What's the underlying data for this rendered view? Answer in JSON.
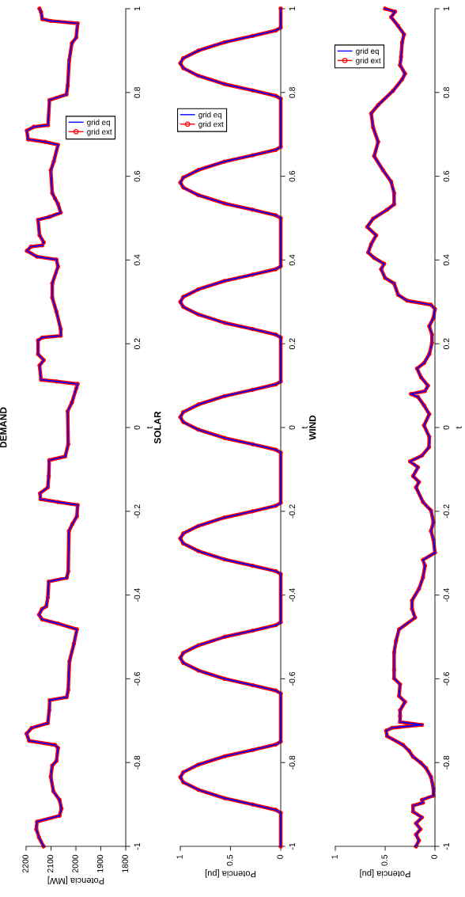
{
  "chart_data": [
    {
      "type": "line",
      "title": "DEMAND",
      "xlabel": "Potencia [MW]",
      "ylabel": "t",
      "xlim": [
        2200,
        1800
      ],
      "xticks": [
        2200,
        2100,
        2000,
        1900,
        1800
      ],
      "ylim": [
        -1,
        1
      ],
      "yticks": [
        -1,
        -0.8,
        -0.6,
        -0.4,
        -0.2,
        0,
        0.2,
        0.4,
        0.6,
        0.8,
        1
      ],
      "legend": "top",
      "series": [
        {
          "name": "grid ext",
          "color": "#ff0000",
          "marker": "circle",
          "x": [
            2130,
            2148,
            2159,
            2156,
            2066,
            2058,
            2066,
            2090,
            2101,
            2095,
            2078,
            2072,
            2084,
            2188,
            2198,
            2177,
            2113,
            2107,
            2105,
            2037,
            2031,
            2026,
            2008,
            1996,
            2072,
            2136,
            2148,
            2136,
            2119,
            2113,
            2109,
            2037,
            2031,
            2028,
            2014,
            1996,
            1993,
            2072,
            2142,
            2144,
            2113,
            2109,
            2107,
            2043,
            2031,
            2033,
            2016,
            1999,
            1993,
            2078,
            2140,
            2146,
            2129,
            2152,
            2152,
            2135,
            2061,
            2061,
            2078,
            2095,
            2095,
            2072,
            2078,
            2157,
            2197,
            2180,
            2135,
            2129,
            2146,
            2152,
            2106,
            2061,
            2072,
            2084,
            2095,
            2101,
            2089,
            2072,
            2123,
            2192,
            2197,
            2169,
            2112,
            2106,
            2038,
            2033,
            2027,
            2016,
            1999,
            1993,
            2101,
            2135,
            2140,
            2146
          ],
          "values": [
            -1,
            -0.979,
            -0.959,
            -0.941,
            -0.927,
            -0.91,
            -0.889,
            -0.869,
            -0.834,
            -0.807,
            -0.796,
            -0.765,
            -0.758,
            -0.748,
            -0.731,
            -0.717,
            -0.706,
            -0.675,
            -0.651,
            -0.644,
            -0.627,
            -0.558,
            -0.516,
            -0.482,
            -0.468,
            -0.458,
            -0.447,
            -0.433,
            -0.427,
            -0.406,
            -0.368,
            -0.359,
            -0.344,
            -0.247,
            -0.23,
            -0.212,
            -0.185,
            -0.178,
            -0.171,
            -0.157,
            -0.143,
            -0.116,
            -0.078,
            -0.069,
            -0.04,
            0.039,
            0.06,
            0.093,
            0.104,
            0.11,
            0.114,
            0.148,
            0.161,
            0.175,
            0.208,
            0.215,
            0.219,
            0.235,
            0.276,
            0.31,
            0.344,
            0.384,
            0.401,
            0.408,
            0.422,
            0.432,
            0.435,
            0.442,
            0.459,
            0.496,
            0.503,
            0.513,
            0.534,
            0.547,
            0.56,
            0.614,
            0.635,
            0.675,
            0.682,
            0.688,
            0.709,
            0.718,
            0.722,
            0.782,
            0.795,
            0.816,
            0.877,
            0.918,
            0.931,
            0.965,
            0.971,
            0.975,
            0.992,
            1
          ]
        },
        {
          "name": "grid eq",
          "color": "#0000ff",
          "marker": "none",
          "x": [
            2130,
            2148,
            2159,
            2156,
            2066,
            2058,
            2066,
            2090,
            2101,
            2095,
            2078,
            2072,
            2084,
            2188,
            2198,
            2177,
            2113,
            2107,
            2105,
            2037,
            2031,
            2026,
            2008,
            1996,
            2072,
            2136,
            2148,
            2136,
            2119,
            2113,
            2109,
            2037,
            2031,
            2028,
            2014,
            1996,
            1993,
            2072,
            2142,
            2144,
            2113,
            2109,
            2107,
            2043,
            2031,
            2033,
            2016,
            1999,
            1993,
            2078,
            2140,
            2146,
            2129,
            2152,
            2152,
            2135,
            2061,
            2061,
            2078,
            2095,
            2095,
            2072,
            2078,
            2157,
            2197,
            2180,
            2135,
            2129,
            2146,
            2152,
            2106,
            2061,
            2072,
            2084,
            2095,
            2101,
            2089,
            2072,
            2123,
            2192,
            2197,
            2169,
            2112,
            2106,
            2038,
            2033,
            2027,
            2016,
            1999,
            1993,
            2101,
            2135,
            2140,
            2146
          ],
          "values": [
            -1,
            -0.979,
            -0.959,
            -0.941,
            -0.927,
            -0.91,
            -0.889,
            -0.869,
            -0.834,
            -0.807,
            -0.796,
            -0.765,
            -0.758,
            -0.748,
            -0.731,
            -0.717,
            -0.706,
            -0.675,
            -0.651,
            -0.644,
            -0.627,
            -0.558,
            -0.516,
            -0.482,
            -0.468,
            -0.458,
            -0.447,
            -0.433,
            -0.427,
            -0.406,
            -0.368,
            -0.359,
            -0.344,
            -0.247,
            -0.23,
            -0.212,
            -0.185,
            -0.178,
            -0.171,
            -0.157,
            -0.143,
            -0.116,
            -0.078,
            -0.069,
            -0.04,
            0.039,
            0.06,
            0.093,
            0.104,
            0.11,
            0.114,
            0.148,
            0.161,
            0.175,
            0.208,
            0.215,
            0.219,
            0.235,
            0.276,
            0.31,
            0.344,
            0.384,
            0.401,
            0.408,
            0.422,
            0.432,
            0.435,
            0.442,
            0.459,
            0.496,
            0.503,
            0.513,
            0.534,
            0.547,
            0.56,
            0.614,
            0.635,
            0.675,
            0.682,
            0.688,
            0.709,
            0.718,
            0.722,
            0.782,
            0.795,
            0.816,
            0.877,
            0.918,
            0.931,
            0.965,
            0.971,
            0.975,
            0.992,
            1
          ]
        }
      ]
    },
    {
      "type": "line",
      "title": "SOLAR",
      "xlabel": "Potencia [pu]",
      "ylabel": "t",
      "xlim": [
        1,
        0
      ],
      "xticks": [
        1,
        0.5,
        0
      ],
      "ylim": [
        -1,
        1
      ],
      "yticks": [
        -1,
        -0.8,
        -0.6,
        -0.4,
        -0.2,
        0,
        0.2,
        0.4,
        0.6,
        0.8,
        1
      ],
      "legend": "top left",
      "series": [
        {
          "name": "grid ext",
          "color": "#ff0000",
          "marker": "circle",
          "x": [
            0,
            0,
            0.05,
            0.28,
            0.56,
            0.82,
            0.97,
            1,
            0.97,
            0.82,
            0.56,
            0.28,
            0.05,
            0,
            0,
            0.05,
            0.28,
            0.56,
            0.82,
            0.97,
            1,
            0.97,
            0.82,
            0.56,
            0.28,
            0.05,
            0,
            0,
            0.05,
            0.28,
            0.56,
            0.82,
            0.97,
            1,
            0.97,
            0.82,
            0.56,
            0.28,
            0.05,
            0,
            0,
            0.05,
            0.28,
            0.56,
            0.82,
            0.97,
            1,
            0.97,
            0.82,
            0.56,
            0.28,
            0.05,
            0,
            0,
            0.05,
            0.28,
            0.56,
            0.82,
            0.97,
            1,
            0.97,
            0.82,
            0.56,
            0.28,
            0.05,
            0,
            0,
            0.05,
            0.28,
            0.56,
            0.82,
            0.97,
            1,
            0.97,
            0.82,
            0.56,
            0.28,
            0.05,
            0,
            0,
            0.05,
            0.28,
            0.56,
            0.82,
            0.97,
            1,
            0.97,
            0.82,
            0.56,
            0.28,
            0.05,
            0,
            0
          ],
          "values": [
            -1,
            -0.92,
            -0.913,
            -0.9,
            -0.885,
            -0.865,
            -0.847,
            -0.835,
            -0.823,
            -0.805,
            -0.785,
            -0.77,
            -0.757,
            -0.75,
            -0.635,
            -0.628,
            -0.615,
            -0.6,
            -0.58,
            -0.562,
            -0.55,
            -0.538,
            -0.52,
            -0.5,
            -0.485,
            -0.472,
            -0.465,
            -0.35,
            -0.343,
            -0.33,
            -0.315,
            -0.295,
            -0.277,
            -0.265,
            -0.253,
            -0.235,
            -0.215,
            -0.2,
            -0.187,
            -0.18,
            -0.06,
            -0.053,
            -0.04,
            -0.025,
            -0.005,
            0.013,
            0.025,
            0.037,
            0.055,
            0.075,
            0.09,
            0.103,
            0.11,
            0.215,
            0.222,
            0.235,
            0.25,
            0.27,
            0.288,
            0.3,
            0.312,
            0.33,
            0.35,
            0.365,
            0.378,
            0.385,
            0.5,
            0.507,
            0.52,
            0.535,
            0.555,
            0.573,
            0.585,
            0.597,
            0.615,
            0.635,
            0.65,
            0.663,
            0.67,
            0.785,
            0.792,
            0.805,
            0.82,
            0.84,
            0.858,
            0.87,
            0.882,
            0.9,
            0.92,
            0.935,
            0.948,
            0.955,
            1
          ]
        },
        {
          "name": "grid eq",
          "color": "#0000ff",
          "marker": "none",
          "x": [
            0,
            0,
            0.05,
            0.28,
            0.56,
            0.82,
            0.97,
            1,
            0.97,
            0.82,
            0.56,
            0.28,
            0.05,
            0,
            0,
            0.05,
            0.28,
            0.56,
            0.82,
            0.97,
            1,
            0.97,
            0.82,
            0.56,
            0.28,
            0.05,
            0,
            0,
            0.05,
            0.28,
            0.56,
            0.82,
            0.97,
            1,
            0.97,
            0.82,
            0.56,
            0.28,
            0.05,
            0,
            0,
            0.05,
            0.28,
            0.56,
            0.82,
            0.97,
            1,
            0.97,
            0.82,
            0.56,
            0.28,
            0.05,
            0,
            0,
            0.05,
            0.28,
            0.56,
            0.82,
            0.97,
            1,
            0.97,
            0.82,
            0.56,
            0.28,
            0.05,
            0,
            0,
            0.05,
            0.28,
            0.56,
            0.82,
            0.97,
            1,
            0.97,
            0.82,
            0.56,
            0.28,
            0.05,
            0,
            0,
            0.05,
            0.28,
            0.56,
            0.82,
            0.97,
            1,
            0.97,
            0.82,
            0.56,
            0.28,
            0.05,
            0,
            0
          ],
          "values": [
            -1,
            -0.92,
            -0.913,
            -0.9,
            -0.885,
            -0.865,
            -0.847,
            -0.835,
            -0.823,
            -0.805,
            -0.785,
            -0.77,
            -0.757,
            -0.75,
            -0.635,
            -0.628,
            -0.615,
            -0.6,
            -0.58,
            -0.562,
            -0.55,
            -0.538,
            -0.52,
            -0.5,
            -0.485,
            -0.472,
            -0.465,
            -0.35,
            -0.343,
            -0.33,
            -0.315,
            -0.295,
            -0.277,
            -0.265,
            -0.253,
            -0.235,
            -0.215,
            -0.2,
            -0.187,
            -0.18,
            -0.06,
            -0.053,
            -0.04,
            -0.025,
            -0.005,
            0.013,
            0.025,
            0.037,
            0.055,
            0.075,
            0.09,
            0.103,
            0.11,
            0.215,
            0.222,
            0.235,
            0.25,
            0.27,
            0.288,
            0.3,
            0.312,
            0.33,
            0.35,
            0.365,
            0.378,
            0.385,
            0.5,
            0.507,
            0.52,
            0.535,
            0.555,
            0.573,
            0.585,
            0.597,
            0.615,
            0.635,
            0.65,
            0.663,
            0.67,
            0.785,
            0.792,
            0.805,
            0.82,
            0.84,
            0.858,
            0.87,
            0.882,
            0.9,
            0.92,
            0.935,
            0.948,
            0.955,
            1
          ]
        }
      ]
    },
    {
      "type": "line",
      "title": "WIND",
      "xlabel": "Potencia [pu]",
      "ylabel": "t",
      "xlim": [
        1,
        0
      ],
      "xticks": [
        1,
        0.5,
        0
      ],
      "ylim": [
        -1,
        1
      ],
      "yticks": [
        -1,
        -0.8,
        -0.6,
        -0.4,
        -0.2,
        0,
        0.2,
        0.4,
        0.6,
        0.8,
        1
      ],
      "legend": "top left",
      "series": [
        {
          "name": "grid ext",
          "color": "#ff0000",
          "marker": "circle",
          "x": [
            0.19,
            0.16,
            0.19,
            0.145,
            0.19,
            0.13,
            0.22,
            0.22,
            0.12,
            0.13,
            0.015,
            0.015,
            0.04,
            0.09,
            0.145,
            0.22,
            0.26,
            0.32,
            0.48,
            0.49,
            0.43,
            0.13,
            0.35,
            0.35,
            0.35,
            0.3,
            0.36,
            0.35,
            0.41,
            0.41,
            0.41,
            0.39,
            0.36,
            0.2,
            0.23,
            0.23,
            0.16,
            0.12,
            0.1,
            0.12,
            0,
            0.015,
            0.04,
            0.015,
            0.04,
            0.12,
            0.19,
            0.16,
            0.22,
            0.17,
            0.25,
            0.13,
            0.06,
            0.057,
            0.11,
            0.057,
            0.11,
            0.17,
            0.24,
            0.1,
            0.07,
            0.14,
            0.18,
            0.11,
            0.057,
            0.03,
            0.03,
            0.057,
            0.015,
            0,
            0.04,
            0.28,
            0.37,
            0.41,
            0.5,
            0.54,
            0.51,
            0.61,
            0.67,
            0.64,
            0.59,
            0.68,
            0.62,
            0.48,
            0.41,
            0.41,
            0.44,
            0.52,
            0.61,
            0.57,
            0.62,
            0.64,
            0.57,
            0.42,
            0.33,
            0.3,
            0.35,
            0.34,
            0.33,
            0.31,
            0.37,
            0.44,
            0.4,
            0.5
          ],
          "values": [
            -1,
            -0.986,
            -0.972,
            -0.959,
            -0.945,
            -0.931,
            -0.917,
            -0.903,
            -0.896,
            -0.889,
            -0.879,
            -0.862,
            -0.834,
            -0.813,
            -0.8,
            -0.786,
            -0.772,
            -0.758,
            -0.737,
            -0.724,
            -0.717,
            -0.71,
            -0.703,
            -0.689,
            -0.675,
            -0.655,
            -0.641,
            -0.613,
            -0.599,
            -0.579,
            -0.537,
            -0.509,
            -0.482,
            -0.454,
            -0.433,
            -0.413,
            -0.385,
            -0.358,
            -0.33,
            -0.316,
            -0.299,
            -0.268,
            -0.247,
            -0.226,
            -0.198,
            -0.178,
            -0.143,
            -0.13,
            -0.116,
            -0.095,
            -0.081,
            -0.067,
            -0.047,
            -0.022,
            0.005,
            0.032,
            0.053,
            0.073,
            0.08,
            0.087,
            0.1,
            0.12,
            0.141,
            0.154,
            0.175,
            0.202,
            0.222,
            0.242,
            0.262,
            0.283,
            0.293,
            0.303,
            0.317,
            0.344,
            0.357,
            0.378,
            0.391,
            0.405,
            0.418,
            0.438,
            0.459,
            0.479,
            0.499,
            0.52,
            0.533,
            0.56,
            0.587,
            0.614,
            0.648,
            0.682,
            0.716,
            0.75,
            0.77,
            0.804,
            0.831,
            0.845,
            0.865,
            0.885,
            0.919,
            0.939,
            0.959,
            0.98,
            0.993,
            1
          ]
        },
        {
          "name": "grid eq",
          "color": "#0000ff",
          "marker": "none",
          "x": [
            0.19,
            0.16,
            0.19,
            0.145,
            0.19,
            0.13,
            0.22,
            0.22,
            0.12,
            0.13,
            0.015,
            0.015,
            0.04,
            0.09,
            0.145,
            0.22,
            0.26,
            0.32,
            0.48,
            0.49,
            0.43,
            0.13,
            0.35,
            0.35,
            0.35,
            0.3,
            0.36,
            0.35,
            0.41,
            0.41,
            0.41,
            0.39,
            0.36,
            0.2,
            0.23,
            0.23,
            0.16,
            0.12,
            0.1,
            0.12,
            0,
            0.015,
            0.04,
            0.015,
            0.04,
            0.12,
            0.19,
            0.16,
            0.22,
            0.17,
            0.25,
            0.13,
            0.06,
            0.057,
            0.11,
            0.057,
            0.11,
            0.17,
            0.24,
            0.1,
            0.07,
            0.14,
            0.18,
            0.11,
            0.057,
            0.03,
            0.03,
            0.057,
            0.015,
            0,
            0.04,
            0.28,
            0.37,
            0.41,
            0.5,
            0.54,
            0.51,
            0.61,
            0.67,
            0.64,
            0.59,
            0.68,
            0.62,
            0.48,
            0.41,
            0.41,
            0.44,
            0.52,
            0.61,
            0.57,
            0.62,
            0.64,
            0.57,
            0.42,
            0.33,
            0.3,
            0.35,
            0.34,
            0.33,
            0.31,
            0.37,
            0.44,
            0.4,
            0.5
          ],
          "values": [
            -1,
            -0.986,
            -0.972,
            -0.959,
            -0.945,
            -0.931,
            -0.917,
            -0.903,
            -0.896,
            -0.889,
            -0.879,
            -0.862,
            -0.834,
            -0.813,
            -0.8,
            -0.786,
            -0.772,
            -0.758,
            -0.737,
            -0.724,
            -0.717,
            -0.71,
            -0.703,
            -0.689,
            -0.675,
            -0.655,
            -0.641,
            -0.613,
            -0.599,
            -0.579,
            -0.537,
            -0.509,
            -0.482,
            -0.454,
            -0.433,
            -0.413,
            -0.385,
            -0.358,
            -0.33,
            -0.316,
            -0.299,
            -0.268,
            -0.247,
            -0.226,
            -0.198,
            -0.178,
            -0.143,
            -0.13,
            -0.116,
            -0.095,
            -0.081,
            -0.067,
            -0.047,
            -0.022,
            0.005,
            0.032,
            0.053,
            0.073,
            0.08,
            0.087,
            0.1,
            0.12,
            0.141,
            0.154,
            0.175,
            0.202,
            0.222,
            0.242,
            0.262,
            0.283,
            0.293,
            0.303,
            0.317,
            0.344,
            0.357,
            0.378,
            0.391,
            0.405,
            0.418,
            0.438,
            0.459,
            0.479,
            0.499,
            0.52,
            0.533,
            0.56,
            0.587,
            0.614,
            0.648,
            0.682,
            0.716,
            0.75,
            0.77,
            0.804,
            0.831,
            0.845,
            0.865,
            0.885,
            0.919,
            0.939,
            0.959,
            0.98,
            0.993,
            1
          ]
        }
      ]
    }
  ]
}
